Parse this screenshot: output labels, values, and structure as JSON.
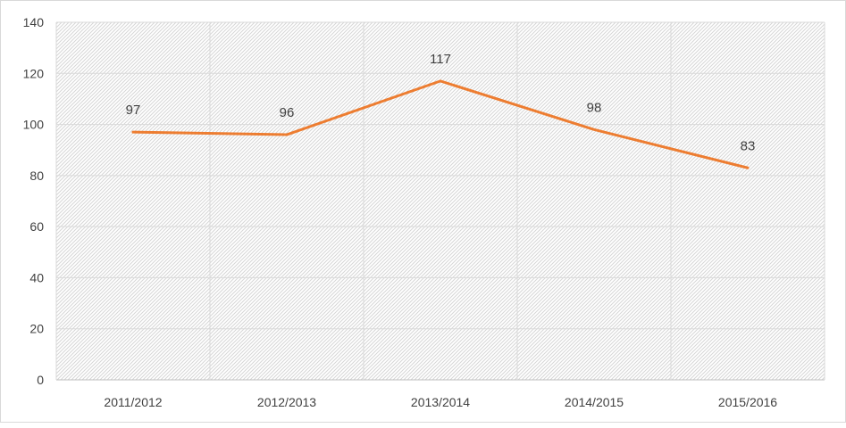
{
  "chart_data": {
    "type": "line",
    "title": "",
    "xlabel": "",
    "ylabel": "",
    "categories": [
      "2011/2012",
      "2012/2013",
      "2013/2014",
      "2014/2015",
      "2015/2016"
    ],
    "series": [
      {
        "values": [
          97,
          96,
          117,
          98,
          83
        ]
      }
    ],
    "ylim": [
      0,
      140
    ],
    "yticks": [
      0,
      20,
      40,
      60,
      80,
      100,
      120,
      140
    ],
    "ytick_labels": [
      "0",
      "20",
      "40",
      "60",
      "80",
      "100",
      "120",
      "140"
    ],
    "data_labels": [
      "97",
      "96",
      "117",
      "98",
      "83"
    ],
    "grid": true,
    "legend": "none",
    "line_color": "#ed7d31",
    "plot_background": "hatched light gray"
  }
}
